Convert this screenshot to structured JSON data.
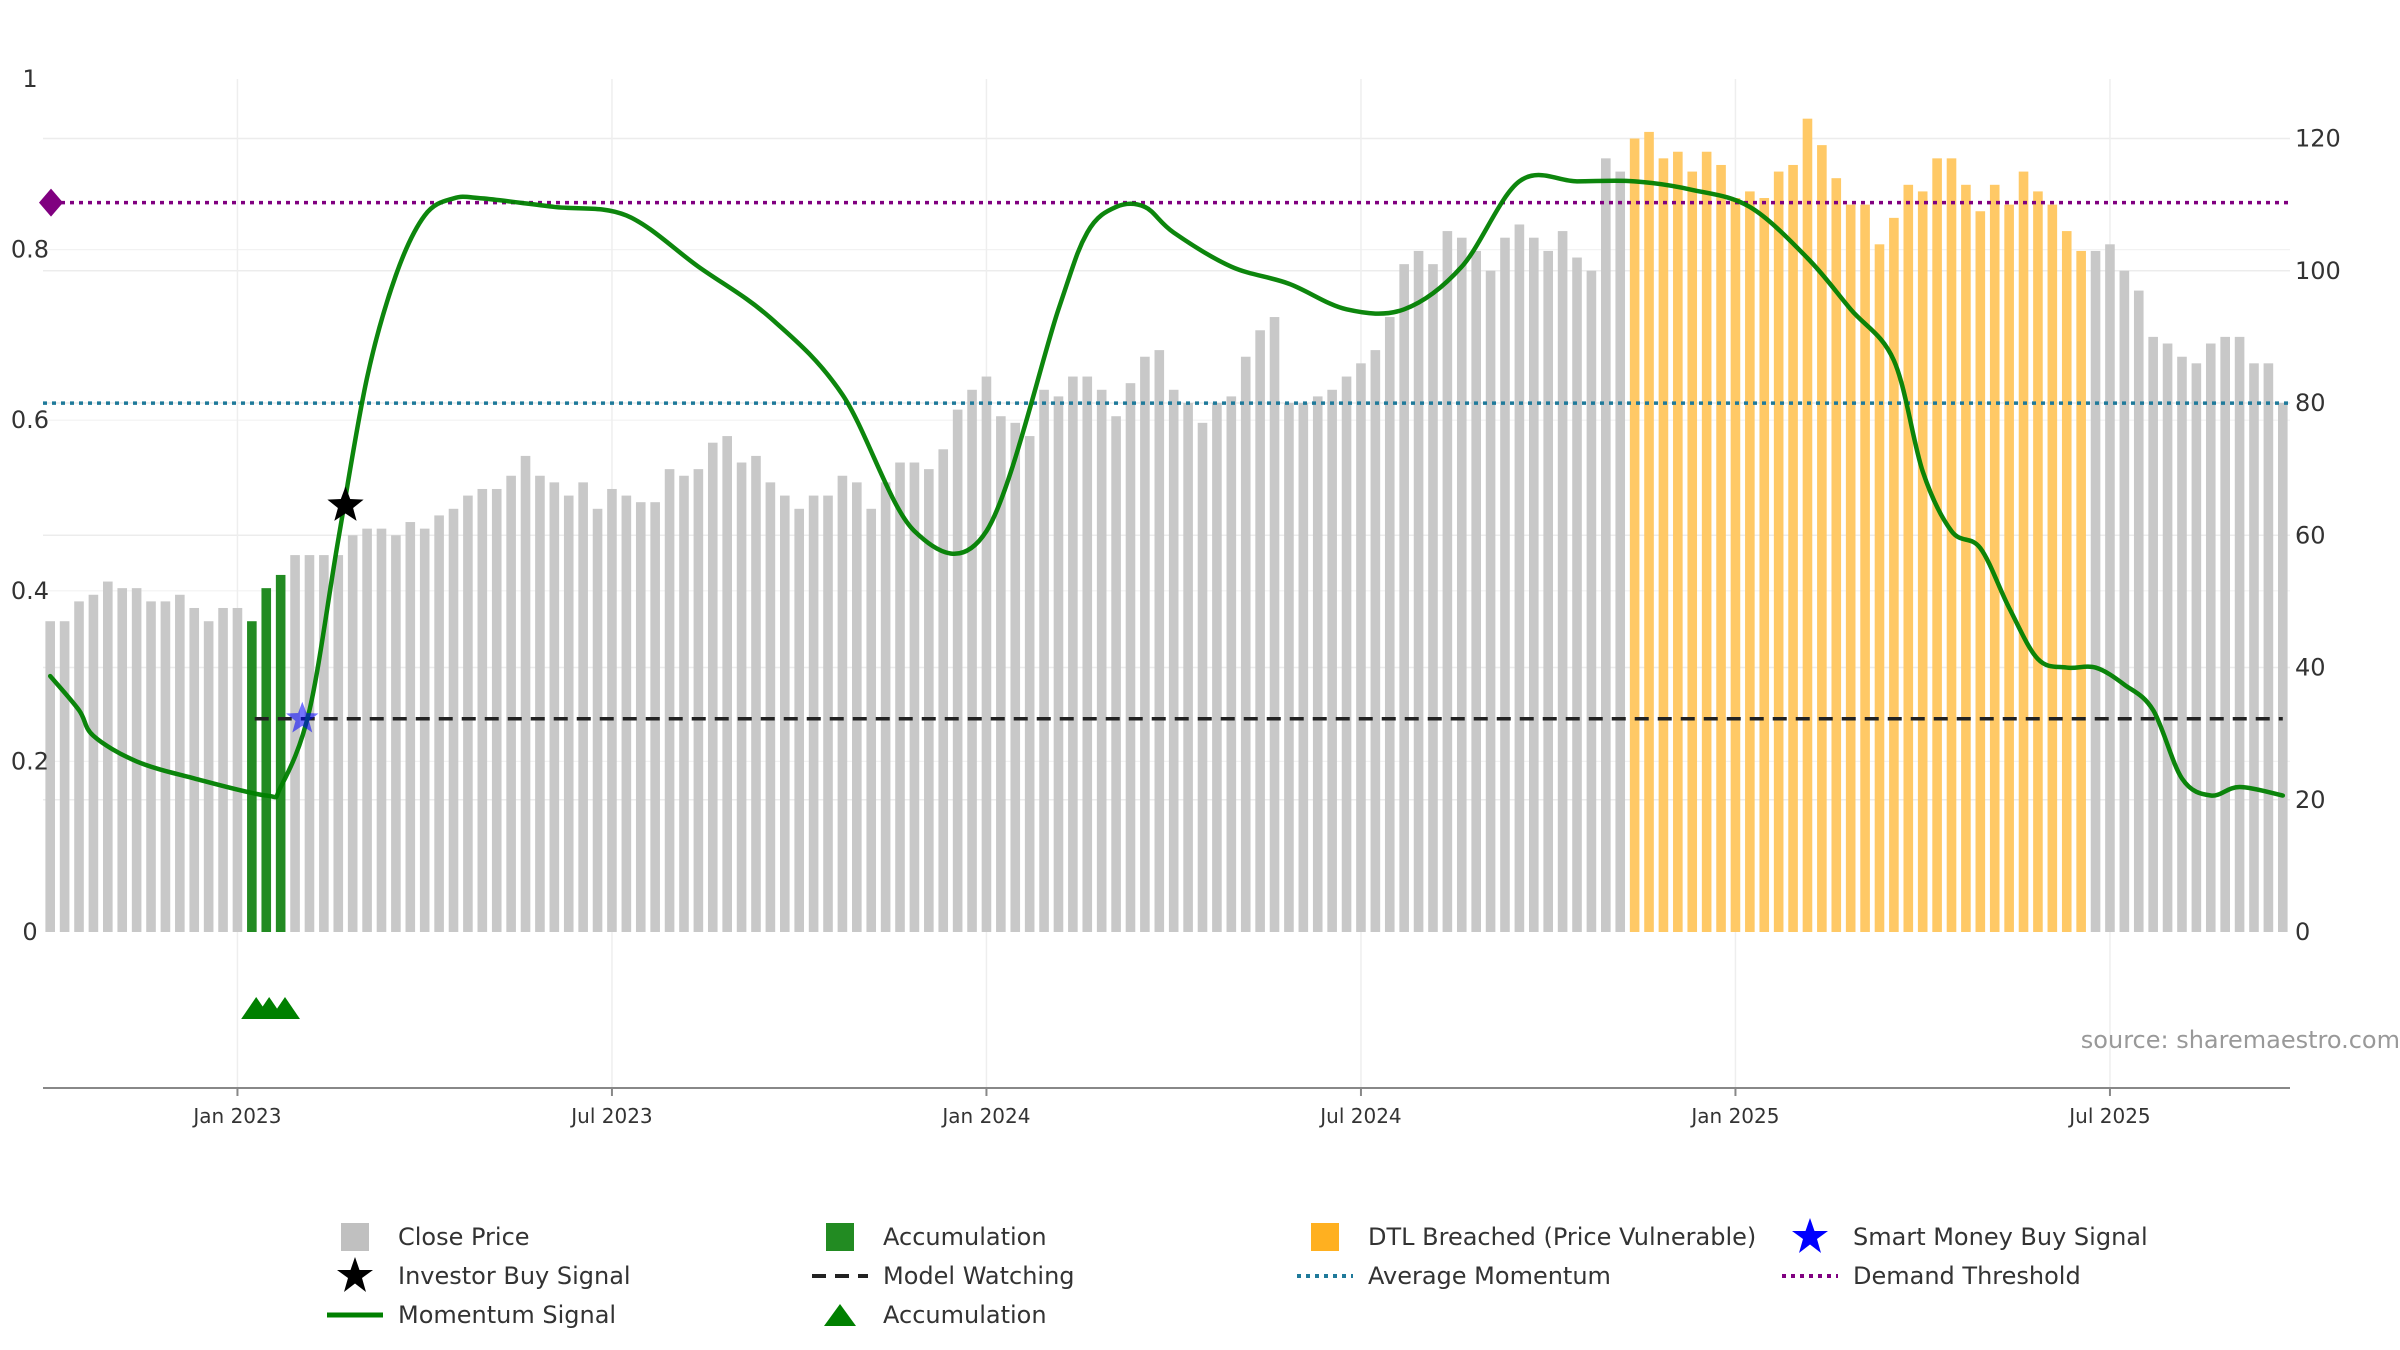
{
  "watermark": "source: sharemaestro.com",
  "colors": {
    "close": "#c8c8c8",
    "accumulation": "#228b22",
    "breached": "#ffc966",
    "momentum": "#008000",
    "model_watching": "#222222",
    "average_momentum": "#1f7a9a",
    "demand_threshold": "#800080",
    "smart_money": "#0000ff",
    "investor_buy": "#000000"
  },
  "legend": {
    "close": "Close Price",
    "accum_bar": "Accumulation",
    "breached": "DTL Breached (Price Vulnerable)",
    "smart_money": "Smart Money Buy Signal",
    "investor_buy": "Investor Buy Signal",
    "model_watching": "Model Watching",
    "avg_momentum": "Average Momentum",
    "demand_threshold": "Demand Threshold",
    "momentum": "Momentum Signal",
    "accum_marker": "Accumulation"
  },
  "chart_data": {
    "type": "bar",
    "x_ticks": [
      "Jan 2023",
      "Jul 2023",
      "Jan 2024",
      "Jul 2024",
      "Jan 2025",
      "Jul 2025"
    ],
    "x_tick_weeks": [
      13,
      39,
      65,
      91,
      117,
      143
    ],
    "left_axis": {
      "ticks": [
        "0",
        "0.2",
        "0.4",
        "0.6",
        "0.8",
        "1"
      ],
      "ylim": [
        0,
        1
      ]
    },
    "right_axis": {
      "ticks": [
        "0",
        "20",
        "40",
        "60",
        "80",
        "100",
        "120"
      ],
      "ylim": [
        0,
        129
      ]
    },
    "close_price": [
      47,
      47,
      50,
      51,
      53,
      52,
      52,
      50,
      50,
      51,
      49,
      47,
      49,
      49,
      47,
      52,
      54,
      57,
      57,
      57,
      57,
      60,
      61,
      61,
      60,
      62,
      61,
      63,
      64,
      66,
      67,
      67,
      69,
      72,
      69,
      68,
      66,
      68,
      64,
      67,
      66,
      65,
      65,
      70,
      69,
      70,
      74,
      75,
      71,
      72,
      68,
      66,
      64,
      66,
      66,
      69,
      68,
      64,
      68,
      71,
      71,
      70,
      73,
      79,
      82,
      84,
      78,
      77,
      75,
      82,
      81,
      84,
      84,
      82,
      78,
      83,
      87,
      88,
      82,
      80,
      77,
      80,
      81,
      87,
      91,
      93,
      80,
      80,
      81,
      82,
      84,
      86,
      88,
      93,
      101,
      103,
      101,
      106,
      105,
      103,
      100,
      105,
      107,
      105,
      103,
      106,
      102,
      100,
      117,
      115,
      120,
      121,
      117,
      118,
      115,
      118,
      116,
      111,
      112,
      111,
      115,
      116,
      123,
      119,
      114,
      110,
      110,
      104,
      108,
      113,
      112,
      117,
      117,
      113,
      109,
      113,
      110,
      115,
      112,
      110,
      106,
      103,
      103,
      104,
      100,
      97,
      90,
      89,
      87,
      86,
      89,
      90,
      90,
      86,
      86,
      80
    ],
    "accumulation_weeks": [
      14,
      15,
      16
    ],
    "breached_weeks": [
      110,
      111,
      112,
      113,
      114,
      115,
      116,
      117,
      118,
      119,
      120,
      121,
      122,
      123,
      124,
      125,
      126,
      127,
      128,
      129,
      130,
      131,
      132,
      133,
      134,
      135,
      136,
      137,
      138,
      139,
      140,
      141
    ],
    "momentum": {
      "x": [
        0,
        2,
        3,
        6,
        10,
        15,
        16,
        18,
        20,
        22,
        24,
        26,
        28,
        30,
        35,
        40,
        45,
        50,
        55,
        60,
        65,
        70,
        72,
        74,
        76,
        78,
        82,
        86,
        90,
        94,
        98,
        102,
        106,
        110,
        114,
        118,
        122,
        125,
        128,
        130,
        132,
        134,
        136,
        138,
        140,
        142,
        144,
        146,
        148,
        150,
        152,
        155
      ],
      "y": [
        0.3,
        0.26,
        0.23,
        0.2,
        0.18,
        0.16,
        0.17,
        0.26,
        0.46,
        0.65,
        0.77,
        0.84,
        0.86,
        0.86,
        0.85,
        0.84,
        0.78,
        0.72,
        0.63,
        0.47,
        0.47,
        0.73,
        0.82,
        0.85,
        0.85,
        0.82,
        0.78,
        0.76,
        0.73,
        0.73,
        0.78,
        0.88,
        0.88,
        0.88,
        0.87,
        0.85,
        0.79,
        0.73,
        0.67,
        0.54,
        0.47,
        0.45,
        0.38,
        0.32,
        0.31,
        0.31,
        0.29,
        0.26,
        0.18,
        0.16,
        0.17,
        0.16
      ]
    },
    "average_momentum": 0.62,
    "demand_threshold": 0.855,
    "model_watching": {
      "from_week": 14.2,
      "to_week": 155,
      "level": 0.25
    },
    "investor_buy_signal": {
      "week": 20.5,
      "value": 0.5
    },
    "smart_money_signal": {
      "week": 17.5,
      "value": 0.25
    },
    "accumulation_markers_weeks": [
      14.3,
      15.2,
      16.3
    ]
  }
}
